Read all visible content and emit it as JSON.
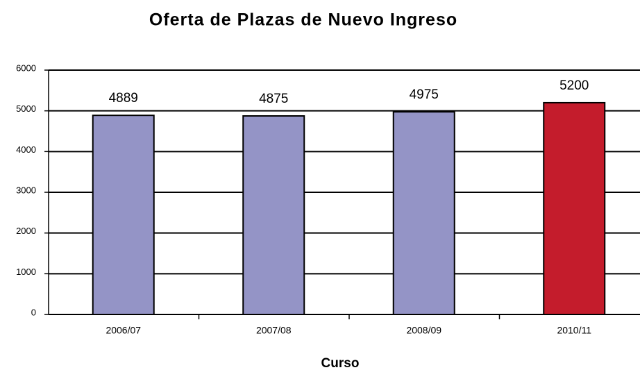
{
  "chart_data": {
    "type": "bar",
    "title": "Oferta de Plazas de Nuevo Ingreso",
    "x_label": "Curso",
    "categories": [
      "2006/07",
      "2007/08",
      "2008/09",
      "2010/11"
    ],
    "values": [
      4889,
      4875,
      4975,
      5200
    ],
    "colors": [
      "#9494c6",
      "#9494c6",
      "#9494c6",
      "#c41c2c"
    ],
    "ylim": [
      0,
      6000
    ],
    "yticks": [
      0,
      1000,
      2000,
      3000,
      4000,
      5000,
      6000
    ],
    "grid": true
  }
}
